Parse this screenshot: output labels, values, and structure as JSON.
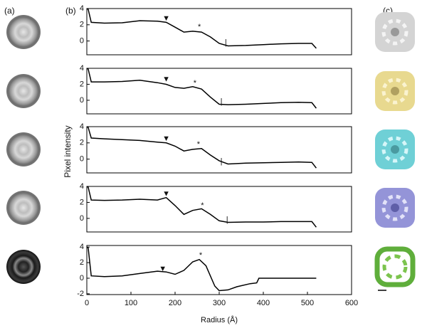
{
  "panel_labels": [
    "(a)",
    "(b)",
    "(c)"
  ],
  "ylabel": "Pixel intensity",
  "chart_data": [
    {
      "type": "line",
      "color": "#000000",
      "xlim": [
        0,
        600
      ],
      "ylim": [
        -1.7,
        4
      ],
      "yticks": [
        0,
        2,
        4
      ],
      "x": [
        0,
        3,
        10,
        40,
        80,
        120,
        160,
        180,
        200,
        220,
        240,
        260,
        280,
        300,
        320,
        360,
        400,
        440,
        480,
        510,
        520
      ],
      "values": [
        4,
        3.9,
        2.3,
        2.2,
        2.25,
        2.5,
        2.45,
        2.3,
        1.7,
        1.1,
        1.2,
        1.1,
        0.5,
        -0.3,
        -0.6,
        -0.55,
        -0.45,
        -0.35,
        -0.3,
        -0.3,
        -0.9
      ],
      "annotations": [
        {
          "text": "▼",
          "x": 180,
          "y": 2.75
        },
        {
          "text": "*",
          "x": 255,
          "y": 1.7
        },
        {
          "text": "|",
          "x": 315,
          "y": -0.2
        }
      ]
    },
    {
      "type": "line",
      "color": "#000000",
      "xlim": [
        0,
        600
      ],
      "ylim": [
        -1.7,
        4
      ],
      "yticks": [
        0,
        2,
        4
      ],
      "x": [
        0,
        3,
        10,
        40,
        80,
        120,
        160,
        180,
        200,
        220,
        240,
        260,
        280,
        300,
        320,
        360,
        400,
        440,
        480,
        510,
        520
      ],
      "values": [
        4,
        3.9,
        2.3,
        2.3,
        2.35,
        2.5,
        2.2,
        2.0,
        1.6,
        1.5,
        1.7,
        1.4,
        0.4,
        -0.5,
        -0.55,
        -0.5,
        -0.4,
        -0.3,
        -0.25,
        -0.3,
        -1.0
      ],
      "annotations": [
        {
          "text": "▼",
          "x": 180,
          "y": 2.6
        },
        {
          "text": "*",
          "x": 245,
          "y": 2.1
        },
        {
          "text": "|",
          "x": 305,
          "y": -0.2
        }
      ]
    },
    {
      "type": "line",
      "color": "#000000",
      "xlim": [
        0,
        600
      ],
      "ylim": [
        -1.7,
        4
      ],
      "yticks": [
        0,
        2,
        4
      ],
      "x": [
        0,
        3,
        10,
        40,
        80,
        120,
        160,
        180,
        200,
        220,
        240,
        260,
        280,
        300,
        320,
        360,
        400,
        440,
        480,
        510,
        520
      ],
      "values": [
        4,
        3.9,
        2.6,
        2.5,
        2.4,
        2.3,
        2.1,
        2.0,
        1.6,
        1.0,
        1.2,
        1.3,
        0.5,
        -0.2,
        -0.6,
        -0.5,
        -0.45,
        -0.4,
        -0.35,
        -0.4,
        -1.1
      ],
      "annotations": [
        {
          "text": "▼",
          "x": 180,
          "y": 2.5
        },
        {
          "text": "*",
          "x": 253,
          "y": 1.8
        },
        {
          "text": "|",
          "x": 305,
          "y": -0.3
        }
      ]
    },
    {
      "type": "line",
      "color": "#000000",
      "xlim": [
        0,
        600
      ],
      "ylim": [
        -1.7,
        4
      ],
      "yticks": [
        0,
        2,
        4
      ],
      "x": [
        0,
        3,
        10,
        40,
        80,
        120,
        160,
        180,
        200,
        220,
        240,
        260,
        280,
        300,
        320,
        360,
        400,
        440,
        480,
        510,
        520
      ],
      "values": [
        4,
        3.9,
        2.3,
        2.25,
        2.3,
        2.4,
        2.3,
        2.6,
        1.6,
        0.5,
        1.0,
        1.2,
        0.5,
        -0.3,
        -0.5,
        -0.45,
        -0.45,
        -0.4,
        -0.4,
        -0.4,
        -1.1
      ],
      "annotations": [
        {
          "text": "▼",
          "x": 180,
          "y": 3.05
        },
        {
          "text": "*",
          "x": 262,
          "y": 1.6
        },
        {
          "text": "|",
          "x": 318,
          "y": -0.2
        }
      ]
    },
    {
      "type": "line",
      "color": "#000000",
      "xlim": [
        0,
        600
      ],
      "ylim": [
        -2.1,
        4.2
      ],
      "yticks": [
        -2,
        0,
        2,
        4
      ],
      "xticks": [
        0,
        100,
        200,
        300,
        400,
        500,
        600
      ],
      "xlabel": "Radius (Å)",
      "x": [
        0,
        3,
        10,
        40,
        80,
        120,
        160,
        180,
        200,
        220,
        240,
        255,
        270,
        290,
        300,
        320,
        340,
        370,
        385,
        390,
        440,
        480,
        520
      ],
      "values": [
        4,
        3.9,
        0.3,
        0.2,
        0.3,
        0.6,
        0.9,
        0.8,
        0.5,
        1.0,
        2.1,
        2.4,
        1.6,
        -1.0,
        -1.6,
        -1.5,
        -1.1,
        -0.7,
        -0.6,
        0,
        0,
        0,
        0
      ],
      "annotations": [
        {
          "text": "▼",
          "x": 172,
          "y": 1.2
        },
        {
          "text": "*",
          "x": 258,
          "y": 2.9
        }
      ]
    }
  ]
}
